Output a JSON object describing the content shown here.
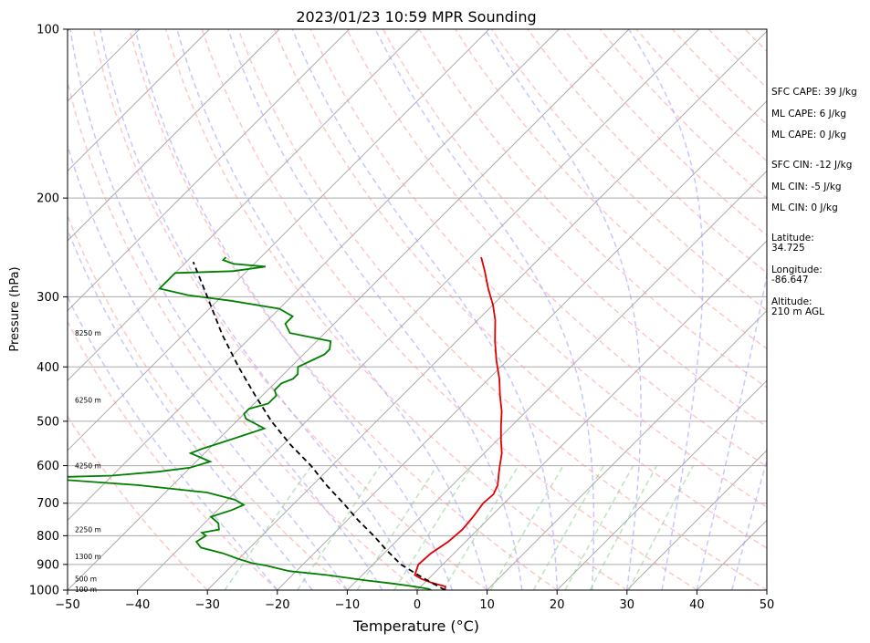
{
  "chart_data": {
    "type": "line",
    "title": "2023/01/23 10:59 MPR Sounding",
    "xlabel": "Temperature (°C)",
    "ylabel": "Pressure (hPa)",
    "xlim": [
      -50,
      50
    ],
    "ylim": [
      1000,
      100
    ],
    "y_scale": "log",
    "skew": "skew-T",
    "grid": true,
    "x_ticks": [
      "−50",
      "−40",
      "−30",
      "−20",
      "−10",
      "0",
      "10",
      "20",
      "30",
      "40",
      "50"
    ],
    "y_ticks": [
      "100",
      "200",
      "300",
      "400",
      "500",
      "600",
      "700",
      "800",
      "900",
      "1000"
    ],
    "series": [
      {
        "color": "#e00000",
        "x_label": "temperature",
        "points": [
          [
            1000,
            4
          ],
          [
            985,
            3.5
          ],
          [
            970,
            1
          ],
          [
            955,
            -1
          ],
          [
            940,
            -2.5
          ],
          [
            920,
            -3
          ],
          [
            900,
            -3.5
          ],
          [
            860,
            -3.3
          ],
          [
            820,
            -2.5
          ],
          [
            780,
            -2.2
          ],
          [
            740,
            -2.5
          ],
          [
            700,
            -3
          ],
          [
            675,
            -2.8
          ],
          [
            650,
            -3.5
          ],
          [
            620,
            -5
          ],
          [
            600,
            -6
          ],
          [
            570,
            -7.5
          ],
          [
            540,
            -9.5
          ],
          [
            510,
            -11.5
          ],
          [
            480,
            -13.5
          ],
          [
            450,
            -16
          ],
          [
            420,
            -18.5
          ],
          [
            390,
            -21.5
          ],
          [
            360,
            -24.5
          ],
          [
            330,
            -27.5
          ],
          [
            310,
            -30
          ],
          [
            290,
            -33
          ],
          [
            270,
            -36
          ],
          [
            255,
            -38.5
          ]
        ]
      },
      {
        "color": "#008000",
        "x_label": "dewpoint",
        "points": [
          [
            1000,
            2
          ],
          [
            995,
            1.5
          ],
          [
            985,
            -1
          ],
          [
            975,
            -4
          ],
          [
            960,
            -9
          ],
          [
            940,
            -15
          ],
          [
            925,
            -21
          ],
          [
            915,
            -23
          ],
          [
            905,
            -25
          ],
          [
            895,
            -27.5
          ],
          [
            880,
            -30
          ],
          [
            860,
            -33
          ],
          [
            840,
            -37
          ],
          [
            820,
            -38.5
          ],
          [
            800,
            -38
          ],
          [
            790,
            -39
          ],
          [
            780,
            -37
          ],
          [
            760,
            -38
          ],
          [
            740,
            -40
          ],
          [
            720,
            -38
          ],
          [
            705,
            -37
          ],
          [
            690,
            -39
          ],
          [
            670,
            -44
          ],
          [
            650,
            -55
          ],
          [
            635,
            -67
          ],
          [
            630,
            -70
          ],
          [
            625,
            -60
          ],
          [
            615,
            -54
          ],
          [
            605,
            -50
          ],
          [
            590,
            -48
          ],
          [
            580,
            -50
          ],
          [
            570,
            -52
          ],
          [
            560,
            -51
          ],
          [
            545,
            -49
          ],
          [
            530,
            -47
          ],
          [
            515,
            -45
          ],
          [
            505,
            -47
          ],
          [
            495,
            -49
          ],
          [
            485,
            -50
          ],
          [
            475,
            -50
          ],
          [
            465,
            -48
          ],
          [
            450,
            -48
          ],
          [
            440,
            -49
          ],
          [
            428,
            -49
          ],
          [
            420,
            -48
          ],
          [
            412,
            -48
          ],
          [
            400,
            -49
          ],
          [
            390,
            -48
          ],
          [
            380,
            -47
          ],
          [
            372,
            -47
          ],
          [
            360,
            -48
          ],
          [
            348,
            -55
          ],
          [
            335,
            -57
          ],
          [
            325,
            -57
          ],
          [
            315,
            -60
          ],
          [
            305,
            -68
          ],
          [
            298,
            -75
          ],
          [
            290,
            -80
          ],
          [
            280,
            -80
          ],
          [
            272,
            -80
          ],
          [
            270,
            -72
          ],
          [
            265,
            -68
          ],
          [
            262,
            -73
          ],
          [
            258,
            -75
          ],
          [
            255,
            -75
          ]
        ]
      },
      {
        "color": "#000000",
        "x_label": "parcel",
        "points": [
          [
            1000,
            4
          ],
          [
            970,
            1
          ],
          [
            940,
            -2
          ],
          [
            900,
            -6
          ],
          [
            850,
            -10
          ],
          [
            800,
            -14
          ],
          [
            750,
            -18.5
          ],
          [
            700,
            -23
          ],
          [
            650,
            -28
          ],
          [
            600,
            -33
          ],
          [
            550,
            -39
          ],
          [
            500,
            -45
          ],
          [
            450,
            -51
          ],
          [
            400,
            -57.5
          ],
          [
            350,
            -64.5
          ],
          [
            300,
            -72
          ],
          [
            260,
            -79
          ]
        ]
      }
    ],
    "height_labels": [
      {
        "p": 996,
        "text": "100 m"
      },
      {
        "p": 955,
        "text": "500 m"
      },
      {
        "p": 870,
        "text": "1300 m"
      },
      {
        "p": 780,
        "text": "2250 m"
      },
      {
        "p": 600,
        "text": "4250 m"
      },
      {
        "p": 458,
        "text": "6250 m"
      },
      {
        "p": 348,
        "text": "8250 m"
      }
    ],
    "stats": [
      "SFC CAPE: 39 J/kg",
      "ML CAPE: 6 J/kg",
      "ML CAPE: 0 J/kg",
      "SFC CIN: -12 J/kg",
      "ML CIN: -5 J/kg",
      "ML CIN: 0 J/kg",
      "Latitude:",
      "34.725",
      "Longitude:",
      "-86.647",
      "Altitude:",
      "210 m AGL"
    ],
    "colors": {
      "isotherm_grid": "#aaaaaa",
      "dry_adiabat": "#ff9999",
      "moist_adiabat": "#9999ff",
      "mixing_ratio": "#88cc88"
    }
  }
}
